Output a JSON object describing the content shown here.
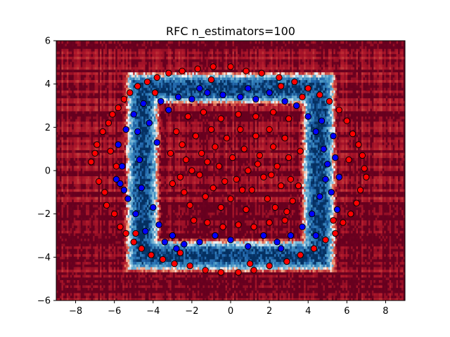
{
  "chart_data": {
    "type": "scatter",
    "title": "RFC n_estimators=100",
    "xlabel": "",
    "ylabel": "",
    "xlim": [
      -9,
      9
    ],
    "ylim": [
      -6,
      6
    ],
    "xticks": [
      -8,
      -6,
      -4,
      -2,
      0,
      2,
      4,
      6,
      8
    ],
    "yticks": [
      -6,
      -4,
      -2,
      0,
      2,
      4,
      6
    ],
    "grid": false,
    "background": "decision-surface",
    "colormap": "RdBu",
    "colors": {
      "class_outer": "#ff0000",
      "class_inner": "#0000ff",
      "marker_edge": "#000000"
    },
    "series": [
      {
        "color": "#ff0000",
        "points": [
          [
            -7.2,
            0.4
          ],
          [
            -7.0,
            0.8
          ],
          [
            -6.8,
            -0.5
          ],
          [
            -6.9,
            1.2
          ],
          [
            -6.6,
            1.8
          ],
          [
            -6.5,
            -1.0
          ],
          [
            -6.3,
            2.2
          ],
          [
            -6.4,
            -1.6
          ],
          [
            -6.1,
            2.6
          ],
          [
            -6.0,
            -2.0
          ],
          [
            -5.9,
            0.2
          ],
          [
            -5.8,
            2.9
          ],
          [
            -5.7,
            -2.6
          ],
          [
            -5.5,
            3.3
          ],
          [
            -5.4,
            -2.9
          ],
          [
            -5.2,
            3.6
          ],
          [
            -5.0,
            -3.3
          ],
          [
            -4.8,
            3.9
          ],
          [
            -4.6,
            -3.6
          ],
          [
            -4.3,
            4.1
          ],
          [
            -4.1,
            -3.9
          ],
          [
            -3.8,
            4.3
          ],
          [
            -3.5,
            -4.1
          ],
          [
            -3.2,
            4.5
          ],
          [
            -2.9,
            -4.3
          ],
          [
            -2.5,
            4.6
          ],
          [
            -2.1,
            -4.4
          ],
          [
            -1.7,
            4.7
          ],
          [
            -1.3,
            -4.6
          ],
          [
            -0.9,
            4.8
          ],
          [
            -0.5,
            -4.7
          ],
          [
            0.0,
            4.8
          ],
          [
            0.4,
            -4.7
          ],
          [
            0.8,
            4.6
          ],
          [
            1.2,
            -4.6
          ],
          [
            1.6,
            4.5
          ],
          [
            2.0,
            -4.4
          ],
          [
            2.5,
            4.3
          ],
          [
            2.9,
            -4.2
          ],
          [
            3.3,
            4.1
          ],
          [
            3.6,
            -3.9
          ],
          [
            4.0,
            3.8
          ],
          [
            4.3,
            -3.6
          ],
          [
            4.6,
            3.5
          ],
          [
            4.9,
            -3.2
          ],
          [
            5.1,
            3.2
          ],
          [
            5.4,
            -2.9
          ],
          [
            5.6,
            2.8
          ],
          [
            5.8,
            -2.4
          ],
          [
            6.0,
            2.3
          ],
          [
            6.2,
            -2.0
          ],
          [
            6.3,
            1.7
          ],
          [
            6.5,
            -1.5
          ],
          [
            6.6,
            1.2
          ],
          [
            6.7,
            -0.9
          ],
          [
            6.8,
            0.7
          ],
          [
            6.9,
            0.1
          ],
          [
            7.0,
            -0.3
          ],
          [
            -6.2,
            0.9
          ],
          [
            6.1,
            0.5
          ],
          [
            -4.9,
            -2.9
          ],
          [
            5.3,
            -2.3
          ],
          [
            -3.9,
            3.6
          ],
          [
            3.7,
            3.4
          ],
          [
            -1.0,
            4.2
          ],
          [
            1.0,
            -4.3
          ],
          [
            -2.6,
            -3.8
          ],
          [
            2.6,
            3.9
          ],
          [
            -2.8,
            1.8
          ],
          [
            -2.5,
            1.2
          ],
          [
            -2.3,
            0.5
          ],
          [
            -2.6,
            -0.3
          ],
          [
            -2.4,
            -1.0
          ],
          [
            -2.1,
            -1.6
          ],
          [
            -1.8,
            1.6
          ],
          [
            -1.5,
            0.8
          ],
          [
            -1.6,
            -0.2
          ],
          [
            -1.3,
            -1.2
          ],
          [
            -1.0,
            1.9
          ],
          [
            -0.8,
            1.1
          ],
          [
            -0.6,
            0.2
          ],
          [
            -0.9,
            -0.8
          ],
          [
            -0.5,
            -1.7
          ],
          [
            -0.2,
            1.5
          ],
          [
            0.1,
            0.6
          ],
          [
            0.3,
            -0.4
          ],
          [
            0.0,
            -1.3
          ],
          [
            0.5,
            1.9
          ],
          [
            0.7,
            1.0
          ],
          [
            0.9,
            0.0
          ],
          [
            1.1,
            -0.9
          ],
          [
            0.8,
            -1.8
          ],
          [
            1.3,
            1.6
          ],
          [
            1.5,
            0.7
          ],
          [
            1.7,
            -0.3
          ],
          [
            1.9,
            -1.3
          ],
          [
            2.0,
            1.9
          ],
          [
            2.2,
            1.1
          ],
          [
            2.4,
            0.2
          ],
          [
            2.6,
            -0.7
          ],
          [
            2.3,
            -1.7
          ],
          [
            2.8,
            1.5
          ],
          [
            3.0,
            0.6
          ],
          [
            3.1,
            -0.4
          ],
          [
            3.2,
            -1.4
          ],
          [
            2.9,
            -1.9
          ],
          [
            -2.0,
            0.0
          ],
          [
            -1.2,
            0.4
          ],
          [
            -0.3,
            -0.5
          ],
          [
            0.6,
            -0.9
          ],
          [
            1.4,
            0.3
          ],
          [
            2.1,
            -0.2
          ],
          [
            -1.9,
            -2.3
          ],
          [
            -1.2,
            -2.4
          ],
          [
            -0.4,
            -2.6
          ],
          [
            0.4,
            -2.5
          ],
          [
            1.2,
            -2.6
          ],
          [
            2.0,
            -2.4
          ],
          [
            2.8,
            -2.3
          ],
          [
            -2.2,
            2.5
          ],
          [
            -1.4,
            2.7
          ],
          [
            -0.5,
            2.4
          ],
          [
            0.4,
            2.6
          ],
          [
            1.3,
            2.5
          ],
          [
            2.2,
            2.7
          ],
          [
            3.0,
            2.4
          ],
          [
            -3.1,
            0.8
          ],
          [
            -3.0,
            -0.6
          ],
          [
            3.6,
            0.9
          ],
          [
            3.5,
            -0.7
          ]
        ]
      },
      {
        "color": "#0000ff",
        "points": [
          [
            -5.8,
            1.2
          ],
          [
            -5.6,
            0.2
          ],
          [
            -5.7,
            -0.6
          ],
          [
            -5.4,
            1.9
          ],
          [
            -5.3,
            -1.3
          ],
          [
            -5.5,
            -0.9
          ],
          [
            -5.0,
            2.6
          ],
          [
            -4.9,
            -2.0
          ],
          [
            -4.7,
            0.5
          ],
          [
            -4.6,
            -0.8
          ],
          [
            -4.5,
            3.1
          ],
          [
            -4.4,
            -2.8
          ],
          [
            -4.2,
            2.2
          ],
          [
            -4.0,
            -1.7
          ],
          [
            -3.8,
            1.3
          ],
          [
            -3.7,
            -2.5
          ],
          [
            -3.6,
            3.2
          ],
          [
            -3.4,
            -3.3
          ],
          [
            -3.2,
            2.8
          ],
          [
            -3.0,
            -3.0
          ],
          [
            -2.7,
            3.4
          ],
          [
            -2.4,
            -3.4
          ],
          [
            -2.0,
            3.3
          ],
          [
            -1.6,
            -3.3
          ],
          [
            -1.2,
            3.6
          ],
          [
            -0.8,
            -3.0
          ],
          [
            -0.4,
            3.5
          ],
          [
            0.0,
            -3.2
          ],
          [
            0.5,
            3.4
          ],
          [
            0.9,
            -3.5
          ],
          [
            1.3,
            3.3
          ],
          [
            1.7,
            -3.0
          ],
          [
            2.0,
            3.6
          ],
          [
            2.4,
            -3.3
          ],
          [
            2.8,
            3.2
          ],
          [
            3.1,
            -3.0
          ],
          [
            3.4,
            3.0
          ],
          [
            3.7,
            -2.6
          ],
          [
            4.0,
            2.5
          ],
          [
            4.2,
            -2.0
          ],
          [
            4.4,
            1.8
          ],
          [
            4.6,
            -1.2
          ],
          [
            4.8,
            1.0
          ],
          [
            4.9,
            -0.4
          ],
          [
            5.0,
            0.3
          ],
          [
            5.2,
            -1.0
          ],
          [
            5.3,
            1.6
          ],
          [
            5.5,
            -1.8
          ],
          [
            5.4,
            0.6
          ],
          [
            -1.6,
            3.8
          ],
          [
            0.9,
            3.8
          ],
          [
            2.6,
            -3.6
          ],
          [
            -2.8,
            -3.6
          ],
          [
            4.4,
            -3.0
          ],
          [
            -4.8,
            1.8
          ],
          [
            4.7,
            2.3
          ],
          [
            -5.9,
            -0.4
          ],
          [
            5.6,
            -0.3
          ]
        ]
      }
    ]
  }
}
